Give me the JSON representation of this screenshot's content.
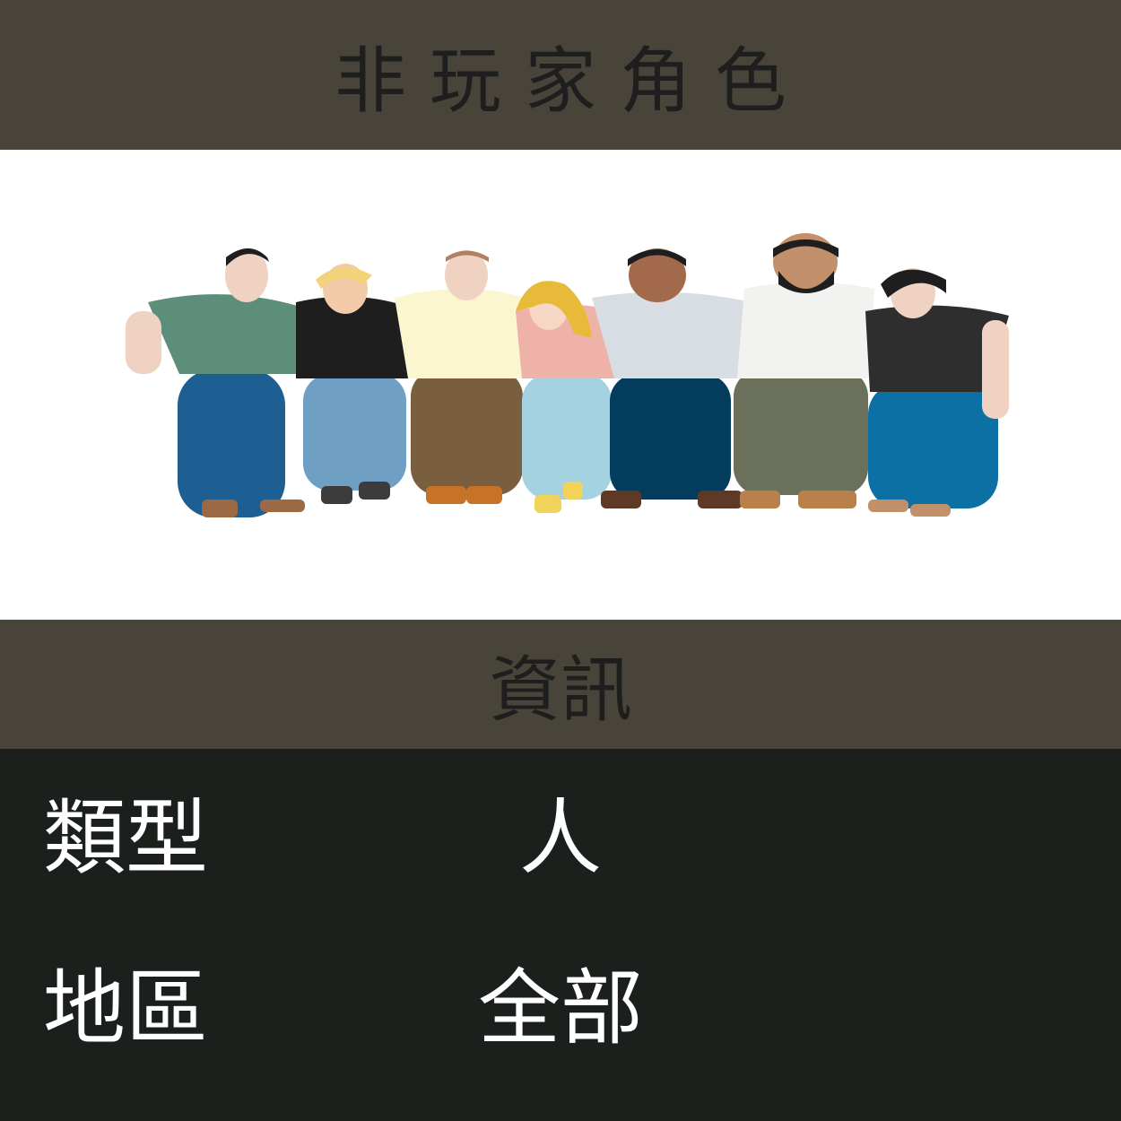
{
  "header": {
    "title": "非玩家角色"
  },
  "hero": {
    "image_icon": "group-of-people-illustration"
  },
  "section": {
    "title": "資訊"
  },
  "info": {
    "rows": [
      {
        "label": "類型",
        "value": "人"
      },
      {
        "label": "地區",
        "value": "全部"
      }
    ]
  },
  "colors": {
    "header_bg": "#48443a",
    "info_bg": "#1c201d",
    "title_text": "#1e1e1e",
    "info_text": "#ffffff"
  }
}
